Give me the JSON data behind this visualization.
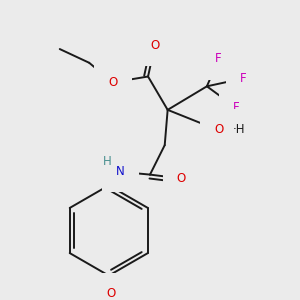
{
  "bg_color": "#ebebeb",
  "bond_color": "#1a1a1a",
  "lw": 1.4,
  "colors": {
    "O": "#dd0000",
    "N": "#1111cc",
    "F": "#cc00bb",
    "H": "#4a9090"
  },
  "figsize": [
    3.0,
    3.0
  ],
  "dpi": 100,
  "fs": 8.5
}
